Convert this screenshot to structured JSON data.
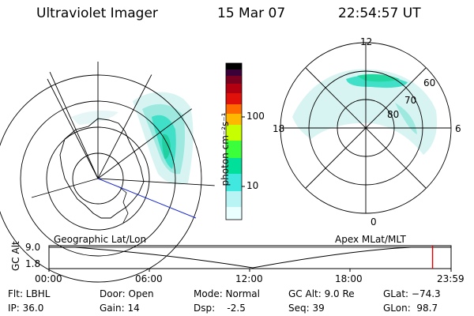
{
  "header": {
    "instrument": "Ultraviolet Imager",
    "date": "15 Mar 07",
    "time": "22:54:57 UT"
  },
  "colorbar": {
    "unit_label": "photon cm⁻²s⁻¹",
    "ticks": [
      "100",
      "10"
    ],
    "colors": [
      "#000000",
      "#3b0038",
      "#7a0020",
      "#b20010",
      "#e0100a",
      "#ff6a00",
      "#ffb800",
      "#c8ff00",
      "#3cff3c",
      "#00e09a",
      "#40e8e0",
      "#b8f4f4",
      "#eaffff"
    ]
  },
  "left_map": {
    "caption": "Geographic Lat/Lon"
  },
  "right_map": {
    "caption": "Apex MLat/MLT",
    "lat_labels": [
      "60",
      "70",
      "80"
    ],
    "mlt_labels": [
      "12",
      "18",
      "6",
      "0"
    ]
  },
  "timeline": {
    "axis_title": "GC Alt",
    "y_ticks": [
      "9.0",
      "1.8"
    ],
    "x_ticks": [
      "00:00",
      "06:00",
      "12:00",
      "18:00",
      "23:59"
    ],
    "current_time_fraction": 0.954
  },
  "info": {
    "filter": "Flt: LBHL",
    "ip": "IP: 36.0",
    "door": "Door: Open",
    "gain": "Gain: 14",
    "mode": "Mode: Normal",
    "dsp": "Dsp:    -2.5",
    "gc_alt": "GC Alt: 9.0 Re",
    "seq": "Seq: 39",
    "glat": "GLat: −74.3",
    "glon": "GLon:  98.7"
  }
}
